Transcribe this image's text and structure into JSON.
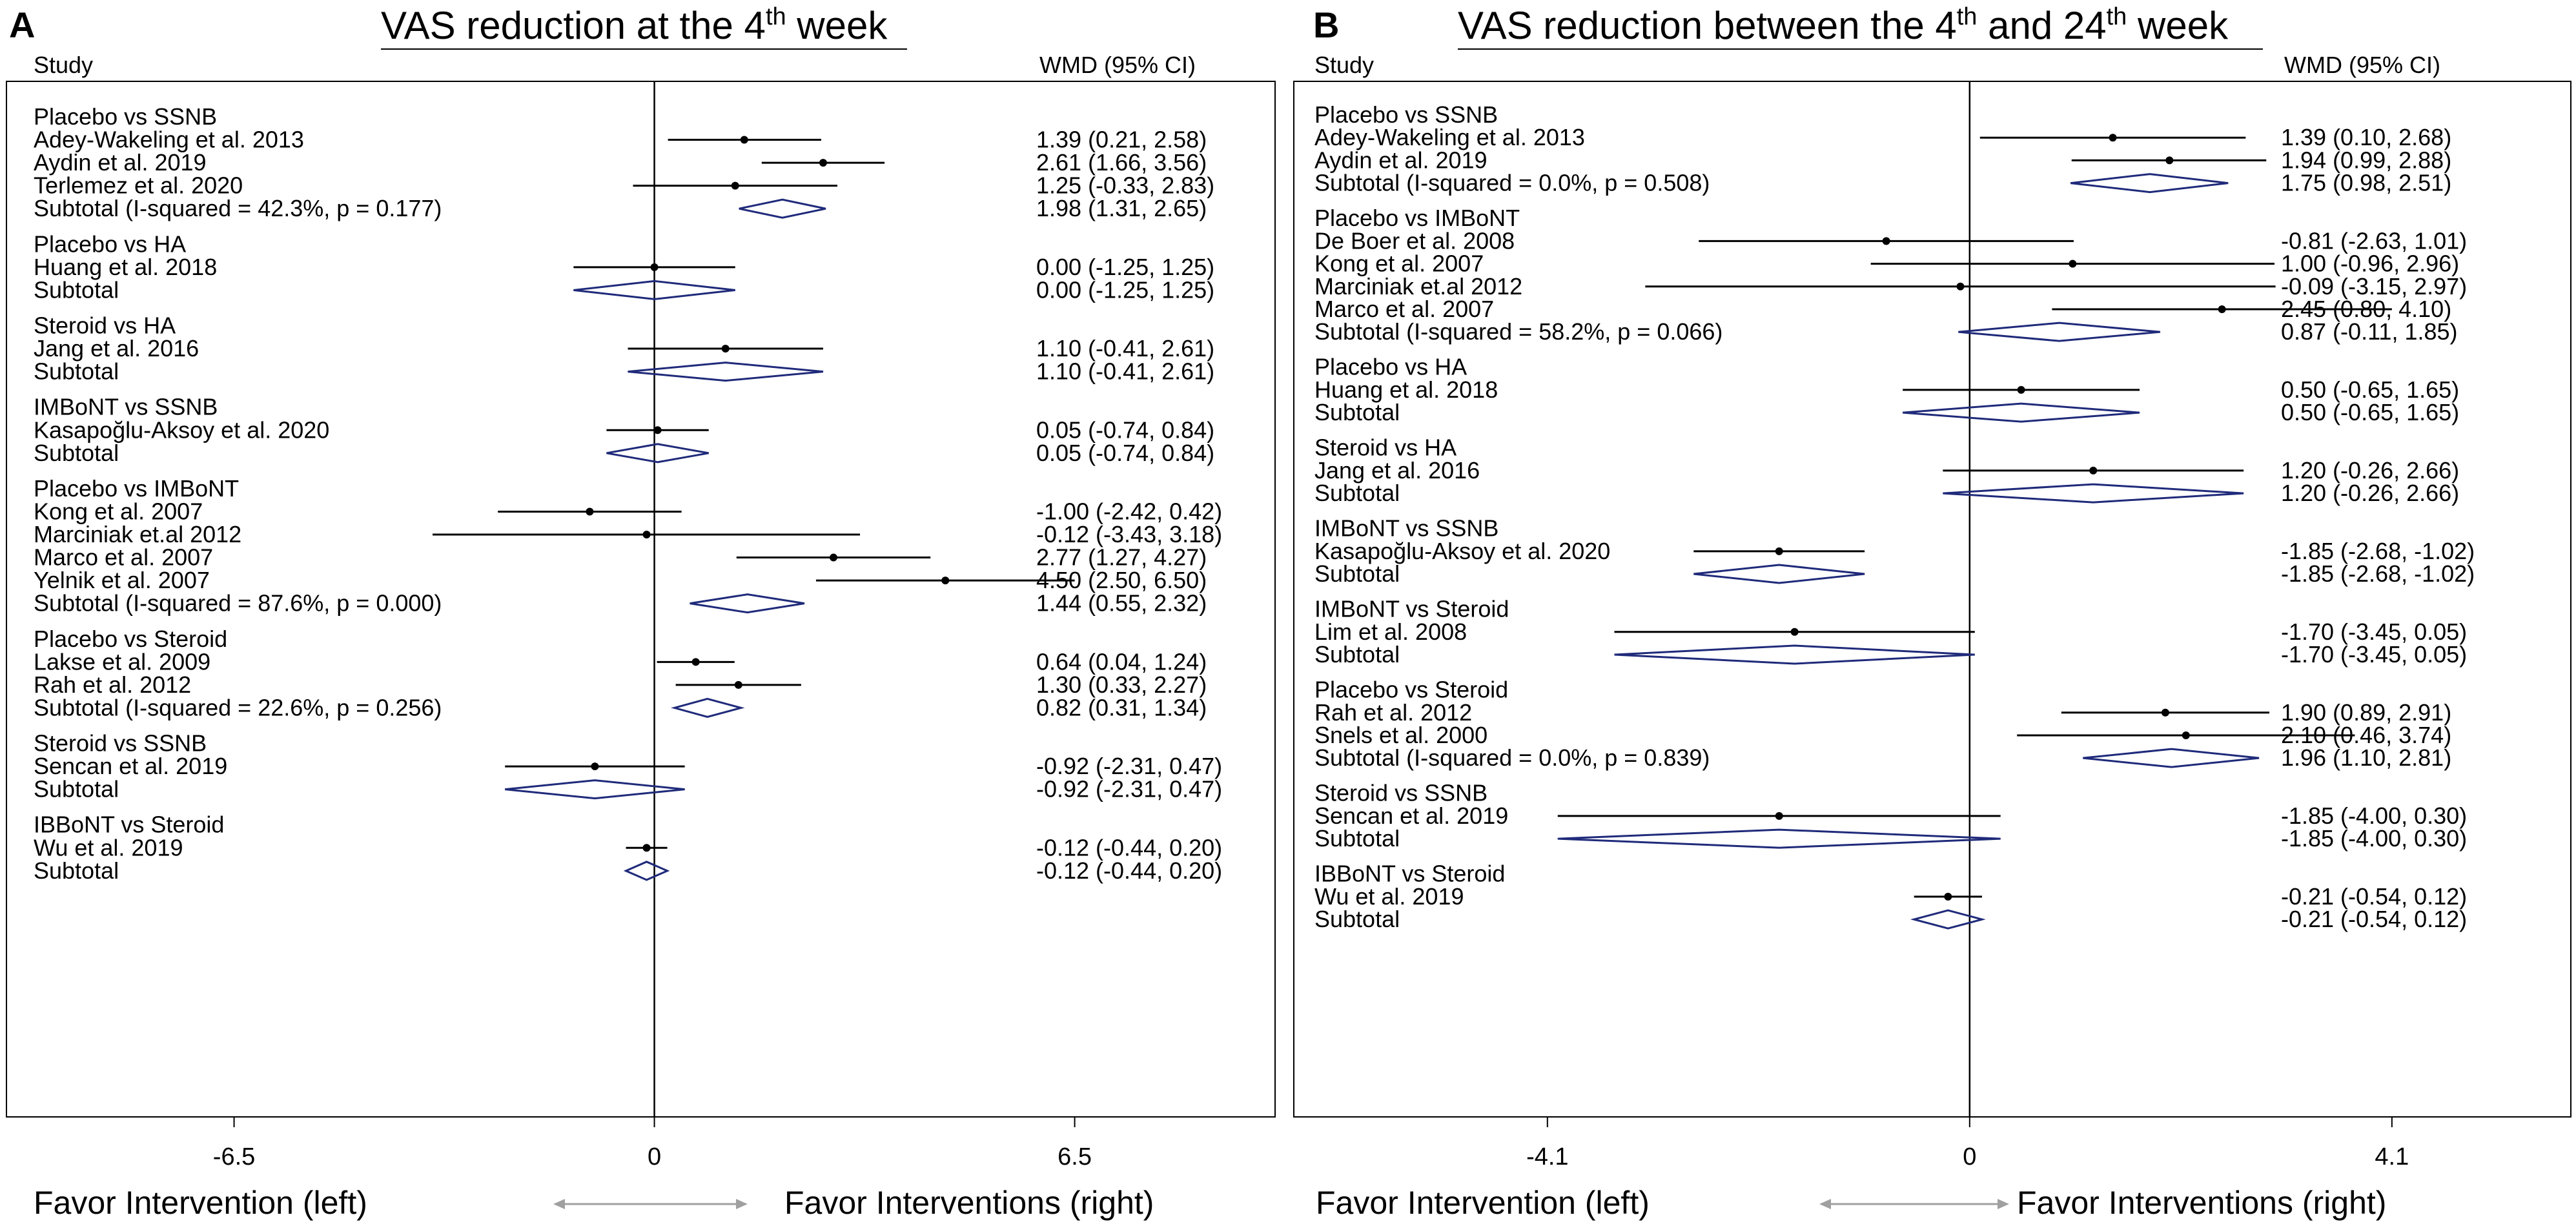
{
  "chart_data": [
    {
      "type": "forest",
      "panel": "A",
      "title": "VAS reduction at the 4",
      "title_sup": "th",
      "title_suffix": " week",
      "study_header": "Study",
      "effect_header": "WMD (95% CI)",
      "xlim": [
        -10.0,
        9.2
      ],
      "ticks": [
        {
          "value": -6.5,
          "label": "-6.5"
        },
        {
          "value": 0,
          "label": "0"
        },
        {
          "value": 6.5,
          "label": "6.5"
        }
      ],
      "favor_left": "Favor Intervention (left)",
      "favor_right": "Favor Interventions (right)",
      "groups": [
        {
          "label": "Placebo vs SSNB",
          "rows": [
            {
              "name": "Adey-Wakeling et al. 2013",
              "est": 1.39,
              "lo": 0.21,
              "hi": 2.58,
              "ci": "1.39 (0.21, 2.58)"
            },
            {
              "name": "Aydin et al. 2019",
              "est": 2.61,
              "lo": 1.66,
              "hi": 3.56,
              "ci": "2.61 (1.66, 3.56)"
            },
            {
              "name": "Terlemez et al. 2020",
              "est": 1.25,
              "lo": -0.33,
              "hi": 2.83,
              "ci": "1.25 (-0.33, 2.83)"
            },
            {
              "name": "Subtotal  (I-squared = 42.3%, p = 0.177)",
              "est": 1.98,
              "lo": 1.31,
              "hi": 2.65,
              "ci": "1.98 (1.31, 2.65)",
              "subtotal": true
            }
          ]
        },
        {
          "label": "Placebo vs HA",
          "rows": [
            {
              "name": "Huang et al. 2018",
              "est": 0.0,
              "lo": -1.25,
              "hi": 1.25,
              "ci": "0.00 (-1.25, 1.25)"
            },
            {
              "name": "Subtotal",
              "est": 0.0,
              "lo": -1.25,
              "hi": 1.25,
              "ci": "0.00 (-1.25, 1.25)",
              "subtotal": true
            }
          ]
        },
        {
          "label": "Steroid vs HA",
          "rows": [
            {
              "name": "Jang et al. 2016",
              "est": 1.1,
              "lo": -0.41,
              "hi": 2.61,
              "ci": "1.10 (-0.41, 2.61)"
            },
            {
              "name": "Subtotal",
              "est": 1.1,
              "lo": -0.41,
              "hi": 2.61,
              "ci": "1.10 (-0.41, 2.61)",
              "subtotal": true
            }
          ]
        },
        {
          "label": "IMBoNT vs SSNB",
          "rows": [
            {
              "name": "Kasapoğlu-Aksoy et al. 2020",
              "est": 0.05,
              "lo": -0.74,
              "hi": 0.84,
              "ci": "0.05 (-0.74, 0.84)"
            },
            {
              "name": "Subtotal",
              "est": 0.05,
              "lo": -0.74,
              "hi": 0.84,
              "ci": "0.05 (-0.74, 0.84)",
              "subtotal": true
            }
          ]
        },
        {
          "label": "Placebo vs IMBoNT",
          "rows": [
            {
              "name": "Kong et al. 2007",
              "est": -1.0,
              "lo": -2.42,
              "hi": 0.42,
              "ci": "-1.00 (-2.42, 0.42)"
            },
            {
              "name": "Marciniak et.al 2012",
              "est": -0.12,
              "lo": -3.43,
              "hi": 3.18,
              "ci": "-0.12 (-3.43, 3.18)"
            },
            {
              "name": "Marco et al. 2007",
              "est": 2.77,
              "lo": 1.27,
              "hi": 4.27,
              "ci": "2.77 (1.27, 4.27)"
            },
            {
              "name": "Yelnik et al. 2007",
              "est": 4.5,
              "lo": 2.5,
              "hi": 6.5,
              "ci": "4.50 (2.50, 6.50)"
            },
            {
              "name": "Subtotal  (I-squared = 87.6%, p = 0.000)",
              "est": 1.44,
              "lo": 0.55,
              "hi": 2.32,
              "ci": "1.44 (0.55, 2.32)",
              "subtotal": true
            }
          ]
        },
        {
          "label": "Placebo vs Steroid",
          "rows": [
            {
              "name": "Lakse et al. 2009",
              "est": 0.64,
              "lo": 0.04,
              "hi": 1.24,
              "ci": "0.64 (0.04, 1.24)"
            },
            {
              "name": "Rah et al. 2012",
              "est": 1.3,
              "lo": 0.33,
              "hi": 2.27,
              "ci": "1.30 (0.33, 2.27)"
            },
            {
              "name": "Subtotal  (I-squared = 22.6%, p = 0.256)",
              "est": 0.82,
              "lo": 0.31,
              "hi": 1.34,
              "ci": "0.82 (0.31, 1.34)",
              "subtotal": true
            }
          ]
        },
        {
          "label": "Steroid vs SSNB",
          "rows": [
            {
              "name": "Sencan et al. 2019",
              "est": -0.92,
              "lo": -2.31,
              "hi": 0.47,
              "ci": "-0.92 (-2.31, 0.47)"
            },
            {
              "name": "Subtotal",
              "est": -0.92,
              "lo": -2.31,
              "hi": 0.47,
              "ci": "-0.92 (-2.31, 0.47)",
              "subtotal": true
            }
          ]
        },
        {
          "label": "IBBoNT vs Steroid",
          "rows": [
            {
              "name": "Wu et al. 2019",
              "est": -0.12,
              "lo": -0.44,
              "hi": 0.2,
              "ci": "-0.12 (-0.44, 0.20)"
            },
            {
              "name": "Subtotal",
              "est": -0.12,
              "lo": -0.44,
              "hi": 0.2,
              "ci": "-0.12 (-0.44, 0.20)",
              "subtotal": true
            }
          ]
        }
      ]
    },
    {
      "type": "forest",
      "panel": "B",
      "title": "VAS reduction between the 4",
      "title_sup": "th",
      "title_mid": " and 24",
      "title_sup2": "th",
      "title_suffix": " week",
      "study_header": "Study",
      "effect_header": "WMD (95% CI)",
      "xlim": [
        -6.55,
        5.85
      ],
      "ticks": [
        {
          "value": -4.1,
          "label": "-4.1"
        },
        {
          "value": 0,
          "label": "0"
        },
        {
          "value": 4.1,
          "label": "4.1"
        }
      ],
      "favor_left": "Favor Intervention (left)",
      "favor_right": "Favor Interventions (right)",
      "groups": [
        {
          "label": "Placebo vs SSNB",
          "rows": [
            {
              "name": "Adey-Wakeling et al. 2013",
              "est": 1.39,
              "lo": 0.1,
              "hi": 2.68,
              "ci": "1.39 (0.10, 2.68)"
            },
            {
              "name": "Aydin et al. 2019",
              "est": 1.94,
              "lo": 0.99,
              "hi": 2.88,
              "ci": "1.94 (0.99, 2.88)"
            },
            {
              "name": "Subtotal  (I-squared = 0.0%, p = 0.508)",
              "est": 1.75,
              "lo": 0.98,
              "hi": 2.51,
              "ci": "1.75 (0.98, 2.51)",
              "subtotal": true
            }
          ]
        },
        {
          "label": "Placebo vs IMBoNT",
          "rows": [
            {
              "name": "De Boer et al. 2008",
              "est": -0.81,
              "lo": -2.63,
              "hi": 1.01,
              "ci": "-0.81 (-2.63, 1.01)"
            },
            {
              "name": "Kong et al. 2007",
              "est": 1.0,
              "lo": -0.96,
              "hi": 2.96,
              "ci": "1.00 (-0.96, 2.96)"
            },
            {
              "name": "Marciniak et.al 2012",
              "est": -0.09,
              "lo": -3.15,
              "hi": 2.97,
              "ci": "-0.09 (-3.15, 2.97)"
            },
            {
              "name": "Marco et al. 2007",
              "est": 2.45,
              "lo": 0.8,
              "hi": 4.1,
              "ci": "2.45 (0.80, 4.10)"
            },
            {
              "name": "Subtotal  (I-squared = 58.2%, p = 0.066)",
              "est": 0.87,
              "lo": -0.11,
              "hi": 1.85,
              "ci": "0.87 (-0.11, 1.85)",
              "subtotal": true
            }
          ]
        },
        {
          "label": "Placebo vs HA",
          "rows": [
            {
              "name": "Huang et al. 2018",
              "est": 0.5,
              "lo": -0.65,
              "hi": 1.65,
              "ci": "0.50 (-0.65, 1.65)"
            },
            {
              "name": "Subtotal",
              "est": 0.5,
              "lo": -0.65,
              "hi": 1.65,
              "ci": "0.50 (-0.65, 1.65)",
              "subtotal": true
            }
          ]
        },
        {
          "label": "Steroid vs HA",
          "rows": [
            {
              "name": "Jang et al. 2016",
              "est": 1.2,
              "lo": -0.26,
              "hi": 2.66,
              "ci": "1.20 (-0.26, 2.66)"
            },
            {
              "name": "Subtotal",
              "est": 1.2,
              "lo": -0.26,
              "hi": 2.66,
              "ci": "1.20 (-0.26, 2.66)",
              "subtotal": true
            }
          ]
        },
        {
          "label": "IMBoNT vs SSNB",
          "rows": [
            {
              "name": "Kasapoğlu-Aksoy et al. 2020",
              "est": -1.85,
              "lo": -2.68,
              "hi": -1.02,
              "ci": "-1.85 (-2.68, -1.02)"
            },
            {
              "name": "Subtotal",
              "est": -1.85,
              "lo": -2.68,
              "hi": -1.02,
              "ci": "-1.85 (-2.68, -1.02)",
              "subtotal": true
            }
          ]
        },
        {
          "label": "IMBoNT vs Steroid",
          "rows": [
            {
              "name": "Lim et al. 2008",
              "est": -1.7,
              "lo": -3.45,
              "hi": 0.05,
              "ci": "-1.70 (-3.45, 0.05)"
            },
            {
              "name": "Subtotal",
              "est": -1.7,
              "lo": -3.45,
              "hi": 0.05,
              "ci": "-1.70 (-3.45, 0.05)",
              "subtotal": true
            }
          ]
        },
        {
          "label": "Placebo vs Steroid",
          "rows": [
            {
              "name": "Rah et al. 2012",
              "est": 1.9,
              "lo": 0.89,
              "hi": 2.91,
              "ci": "1.90 (0.89, 2.91)"
            },
            {
              "name": "Snels et al. 2000",
              "est": 2.1,
              "lo": 0.46,
              "hi": 3.74,
              "ci": "2.10 (0.46, 3.74)"
            },
            {
              "name": "Subtotal  (I-squared = 0.0%, p = 0.839)",
              "est": 1.96,
              "lo": 1.1,
              "hi": 2.81,
              "ci": "1.96 (1.10, 2.81)",
              "subtotal": true
            }
          ]
        },
        {
          "label": "Steroid vs SSNB",
          "rows": [
            {
              "name": "Sencan et al. 2019",
              "est": -1.85,
              "lo": -4.0,
              "hi": 0.3,
              "ci": "-1.85 (-4.00, 0.30)"
            },
            {
              "name": "Subtotal",
              "est": -1.85,
              "lo": -4.0,
              "hi": 0.3,
              "ci": "-1.85 (-4.00, 0.30)",
              "subtotal": true
            }
          ]
        },
        {
          "label": "IBBoNT vs Steroid",
          "rows": [
            {
              "name": "Wu et al. 2019",
              "est": -0.21,
              "lo": -0.54,
              "hi": 0.12,
              "ci": "-0.21 (-0.54, 0.12)"
            },
            {
              "name": "Subtotal",
              "est": -0.21,
              "lo": -0.54,
              "hi": 0.12,
              "ci": "-0.21 (-0.54, 0.12)",
              "subtotal": true
            }
          ]
        }
      ]
    }
  ],
  "colors": {
    "ink": "#000000",
    "diamond": "#1f2a7a",
    "arrow": "#a0a0a0"
  }
}
